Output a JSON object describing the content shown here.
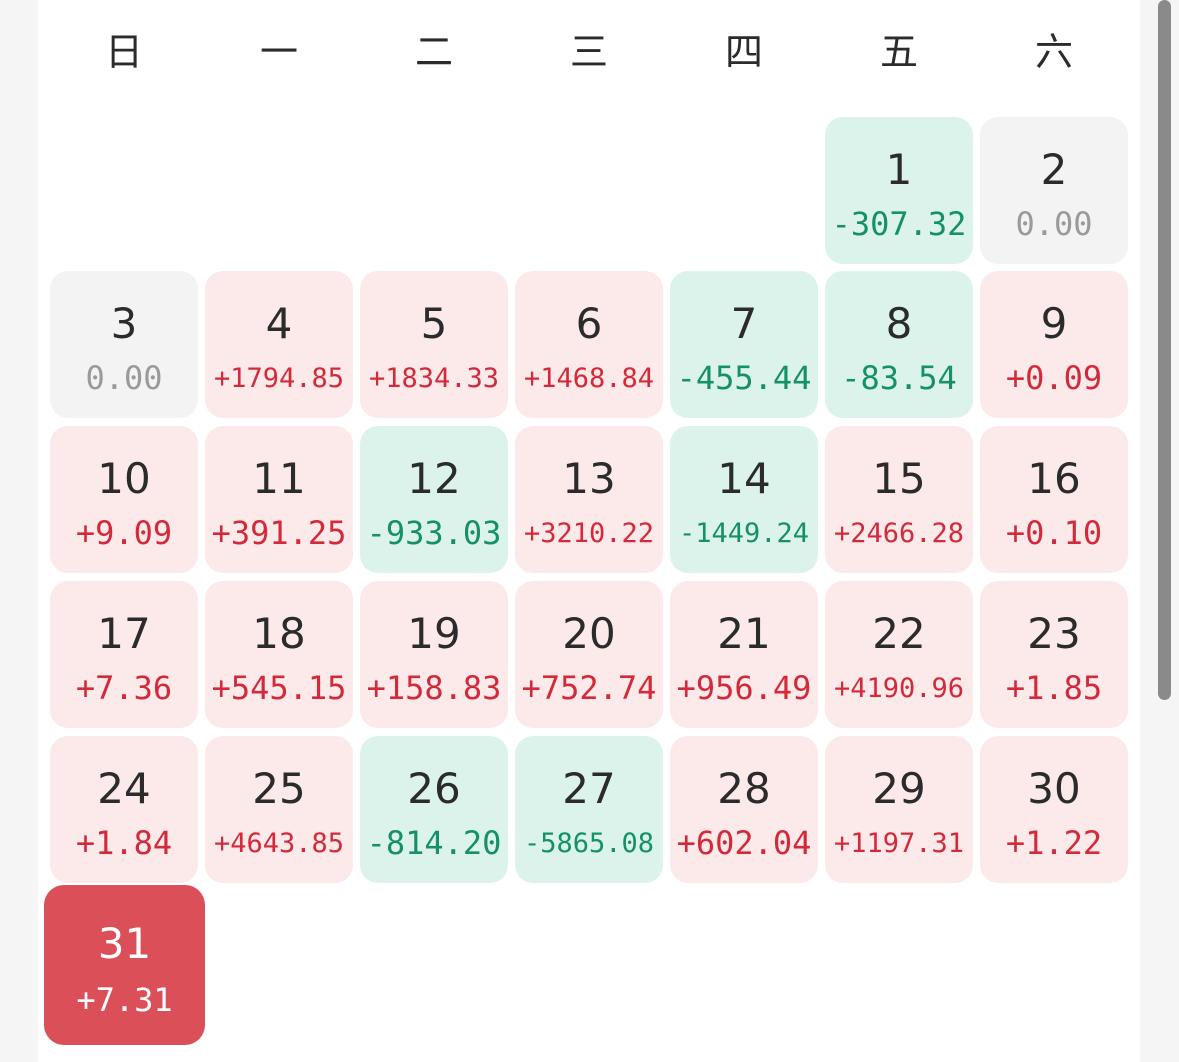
{
  "weekdays": [
    "日",
    "一",
    "二",
    "三",
    "四",
    "五",
    "六"
  ],
  "colors": {
    "positive_bg": "#fce9e9",
    "positive_text": "#d22a3a",
    "negative_bg": "#dcf3ec",
    "negative_text": "#159068",
    "zero_bg": "#f3f3f3",
    "zero_text": "#9a9a9a",
    "selected_bg": "#db4f58"
  },
  "calendar": {
    "first_weekday_index": 5,
    "selected_day": 31,
    "days": [
      {
        "day": "1",
        "value": "-307.32",
        "status": "neg"
      },
      {
        "day": "2",
        "value": "0.00",
        "status": "zero"
      },
      {
        "day": "3",
        "value": "0.00",
        "status": "zero"
      },
      {
        "day": "4",
        "value": "+1794.85",
        "status": "pos"
      },
      {
        "day": "5",
        "value": "+1834.33",
        "status": "pos"
      },
      {
        "day": "6",
        "value": "+1468.84",
        "status": "pos"
      },
      {
        "day": "7",
        "value": "-455.44",
        "status": "neg"
      },
      {
        "day": "8",
        "value": "-83.54",
        "status": "neg"
      },
      {
        "day": "9",
        "value": "+0.09",
        "status": "pos"
      },
      {
        "day": "10",
        "value": "+9.09",
        "status": "pos"
      },
      {
        "day": "11",
        "value": "+391.25",
        "status": "pos"
      },
      {
        "day": "12",
        "value": "-933.03",
        "status": "neg"
      },
      {
        "day": "13",
        "value": "+3210.22",
        "status": "pos"
      },
      {
        "day": "14",
        "value": "-1449.24",
        "status": "neg"
      },
      {
        "day": "15",
        "value": "+2466.28",
        "status": "pos"
      },
      {
        "day": "16",
        "value": "+0.10",
        "status": "pos"
      },
      {
        "day": "17",
        "value": "+7.36",
        "status": "pos"
      },
      {
        "day": "18",
        "value": "+545.15",
        "status": "pos"
      },
      {
        "day": "19",
        "value": "+158.83",
        "status": "pos"
      },
      {
        "day": "20",
        "value": "+752.74",
        "status": "pos"
      },
      {
        "day": "21",
        "value": "+956.49",
        "status": "pos"
      },
      {
        "day": "22",
        "value": "+4190.96",
        "status": "pos"
      },
      {
        "day": "23",
        "value": "+1.85",
        "status": "pos"
      },
      {
        "day": "24",
        "value": "+1.84",
        "status": "pos"
      },
      {
        "day": "25",
        "value": "+4643.85",
        "status": "pos"
      },
      {
        "day": "26",
        "value": "-814.20",
        "status": "neg"
      },
      {
        "day": "27",
        "value": "-5865.08",
        "status": "neg"
      },
      {
        "day": "28",
        "value": "+602.04",
        "status": "pos"
      },
      {
        "day": "29",
        "value": "+1197.31",
        "status": "pos"
      },
      {
        "day": "30",
        "value": "+1.22",
        "status": "pos"
      },
      {
        "day": "31",
        "value": "+7.31",
        "status": "pos"
      }
    ]
  }
}
